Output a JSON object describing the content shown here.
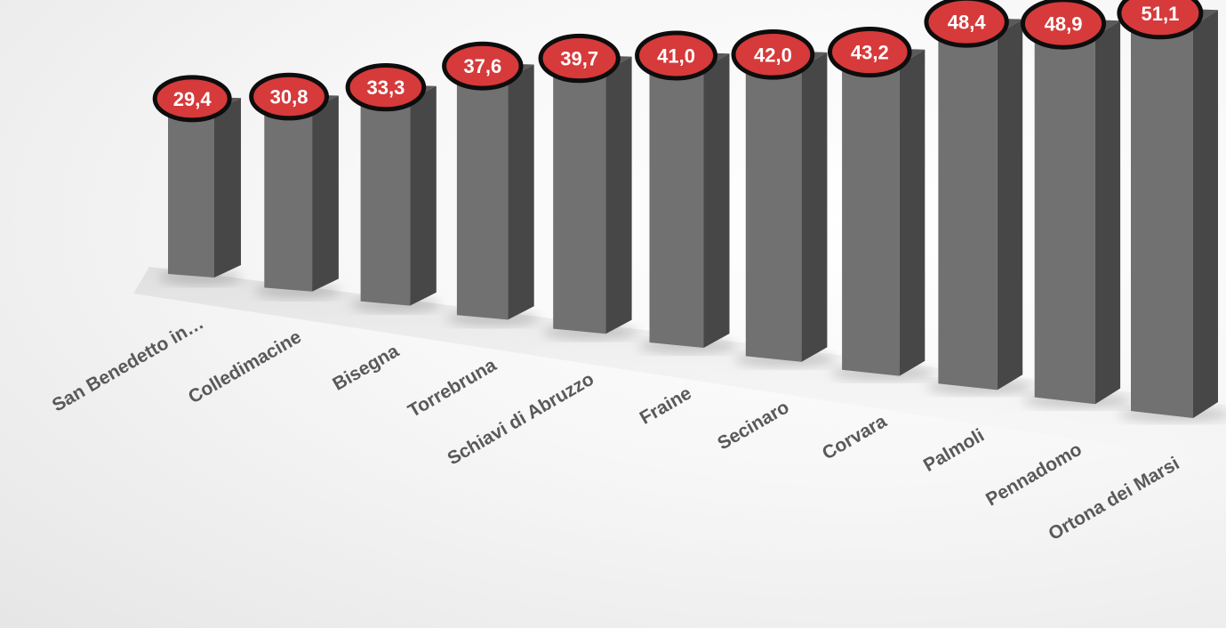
{
  "chart_data": {
    "type": "bar",
    "categories": [
      "San Benedetto in…",
      "Colledimacine",
      "Bisegna",
      "Torrebruna",
      "Schiavi di Abruzzo",
      "Fraine",
      "Secinaro",
      "Corvara",
      "Palmoli",
      "Pennadomo",
      "Ortona dei Marsi"
    ],
    "values": [
      29.4,
      30.8,
      33.3,
      37.6,
      39.7,
      41.0,
      42.0,
      43.2,
      48.4,
      48.9,
      51.1
    ],
    "value_labels": [
      "29,4",
      "30,8",
      "33,3",
      "37,6",
      "39,7",
      "41,0",
      "42,0",
      "43,2",
      "48,4",
      "48,9",
      "51,1"
    ],
    "title": "",
    "xlabel": "",
    "ylabel": "",
    "legend": "none",
    "grid": false,
    "style": "3d-column",
    "colors": {
      "bar_front": "#717171",
      "bar_side": "#474747",
      "bar_top": "#5a5a5a",
      "label_fill": "#d63a3a",
      "label_border": "#0d0d0d",
      "label_text": "#ffffff",
      "category_text": "#595959"
    }
  }
}
